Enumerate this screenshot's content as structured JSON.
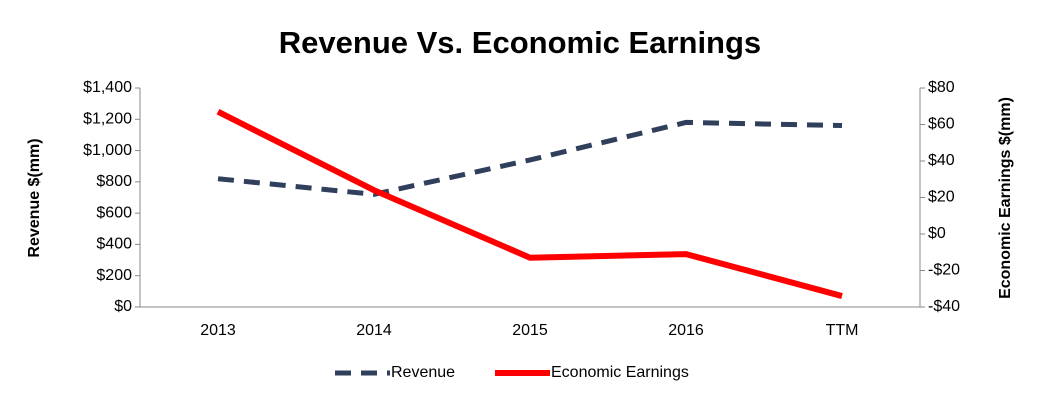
{
  "chart_data": {
    "type": "line",
    "title": "Revenue Vs. Economic Earnings",
    "categories": [
      "2013",
      "2014",
      "2015",
      "2016",
      "TTM"
    ],
    "y_label": "Revenue $(mm)",
    "y2_label": "Economic Earnings $(mm)",
    "ylim": [
      0,
      1400
    ],
    "yticks": [
      {
        "value": 0,
        "label": "$0"
      },
      {
        "value": 200,
        "label": "$200"
      },
      {
        "value": 400,
        "label": "$400"
      },
      {
        "value": 600,
        "label": "$600"
      },
      {
        "value": 800,
        "label": "$800"
      },
      {
        "value": 1000,
        "label": "$1,000"
      },
      {
        "value": 1200,
        "label": "$1,200"
      },
      {
        "value": 1400,
        "label": "$1,400"
      }
    ],
    "y2lim": [
      -40,
      80
    ],
    "y2ticks": [
      {
        "value": -40,
        "label": "-$40"
      },
      {
        "value": -20,
        "label": "-$20"
      },
      {
        "value": 0,
        "label": "$0"
      },
      {
        "value": 20,
        "label": "$20"
      },
      {
        "value": 40,
        "label": "$40"
      },
      {
        "value": 60,
        "label": "$60"
      },
      {
        "value": 80,
        "label": "$80"
      }
    ],
    "series": [
      {
        "name": "Revenue",
        "color": "#2f3f5c",
        "dashed": true,
        "values": [
          820,
          720,
          940,
          1180,
          1160
        ]
      },
      {
        "name": "Economic Earnings",
        "color": "#ff0000",
        "axis": "y2",
        "values": [
          67,
          24,
          -13,
          -11,
          -34
        ]
      }
    ]
  }
}
